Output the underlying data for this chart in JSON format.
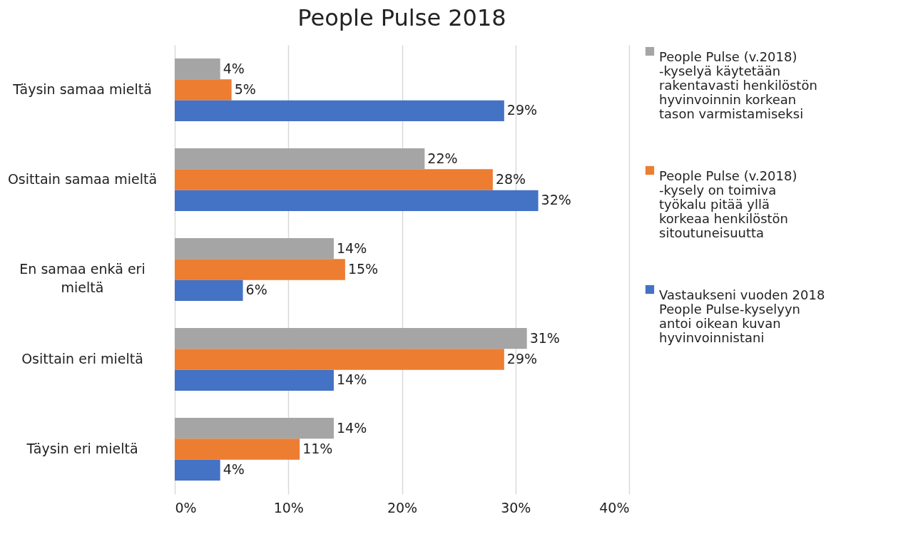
{
  "chart_data": {
    "type": "bar",
    "orientation": "horizontal",
    "title": "People Pulse 2018",
    "categories": [
      "Täysin samaa mieltä",
      "Osittain samaa mieltä",
      "En samaa enkä eri mieltä",
      "Osittain eri mieltä",
      "Täysin eri mieltä"
    ],
    "series": [
      {
        "name": "People Pulse (v.2018) -kyselyä käytetään rakentavasti henkilöstön hyvinvoinnin korkean tason varmistamiseksi",
        "color": "#a5a5a5",
        "values": [
          4,
          22,
          14,
          31,
          14
        ],
        "value_labels": [
          "4%",
          "22%",
          "14%",
          "31%",
          "14%"
        ]
      },
      {
        "name": "People Pulse (v.2018) -kysely on toimiva työkalu pitää yllä korkeaa henkilöstön sitoutuneisuutta",
        "color": "#ed7d31",
        "values": [
          5,
          28,
          15,
          29,
          11
        ],
        "value_labels": [
          "5%",
          "28%",
          "15%",
          "29%",
          "11%"
        ]
      },
      {
        "name": "Vastaukseni vuoden 2018 People Pulse-kyselyyn antoi oikean kuvan hyvinvoinnistani",
        "color": "#4472c4",
        "values": [
          29,
          32,
          6,
          14,
          4
        ],
        "value_labels": [
          "29%",
          "32%",
          "6%",
          "14%",
          "4%"
        ]
      }
    ],
    "xlim": [
      0,
      40
    ],
    "xticks": [
      {
        "value": 0,
        "label": "0%"
      },
      {
        "value": 10,
        "label": "10%"
      },
      {
        "value": 20,
        "label": "20%"
      },
      {
        "value": 30,
        "label": "30%"
      },
      {
        "value": 40,
        "label": "40%"
      }
    ],
    "grid": "x",
    "legend": "right"
  }
}
